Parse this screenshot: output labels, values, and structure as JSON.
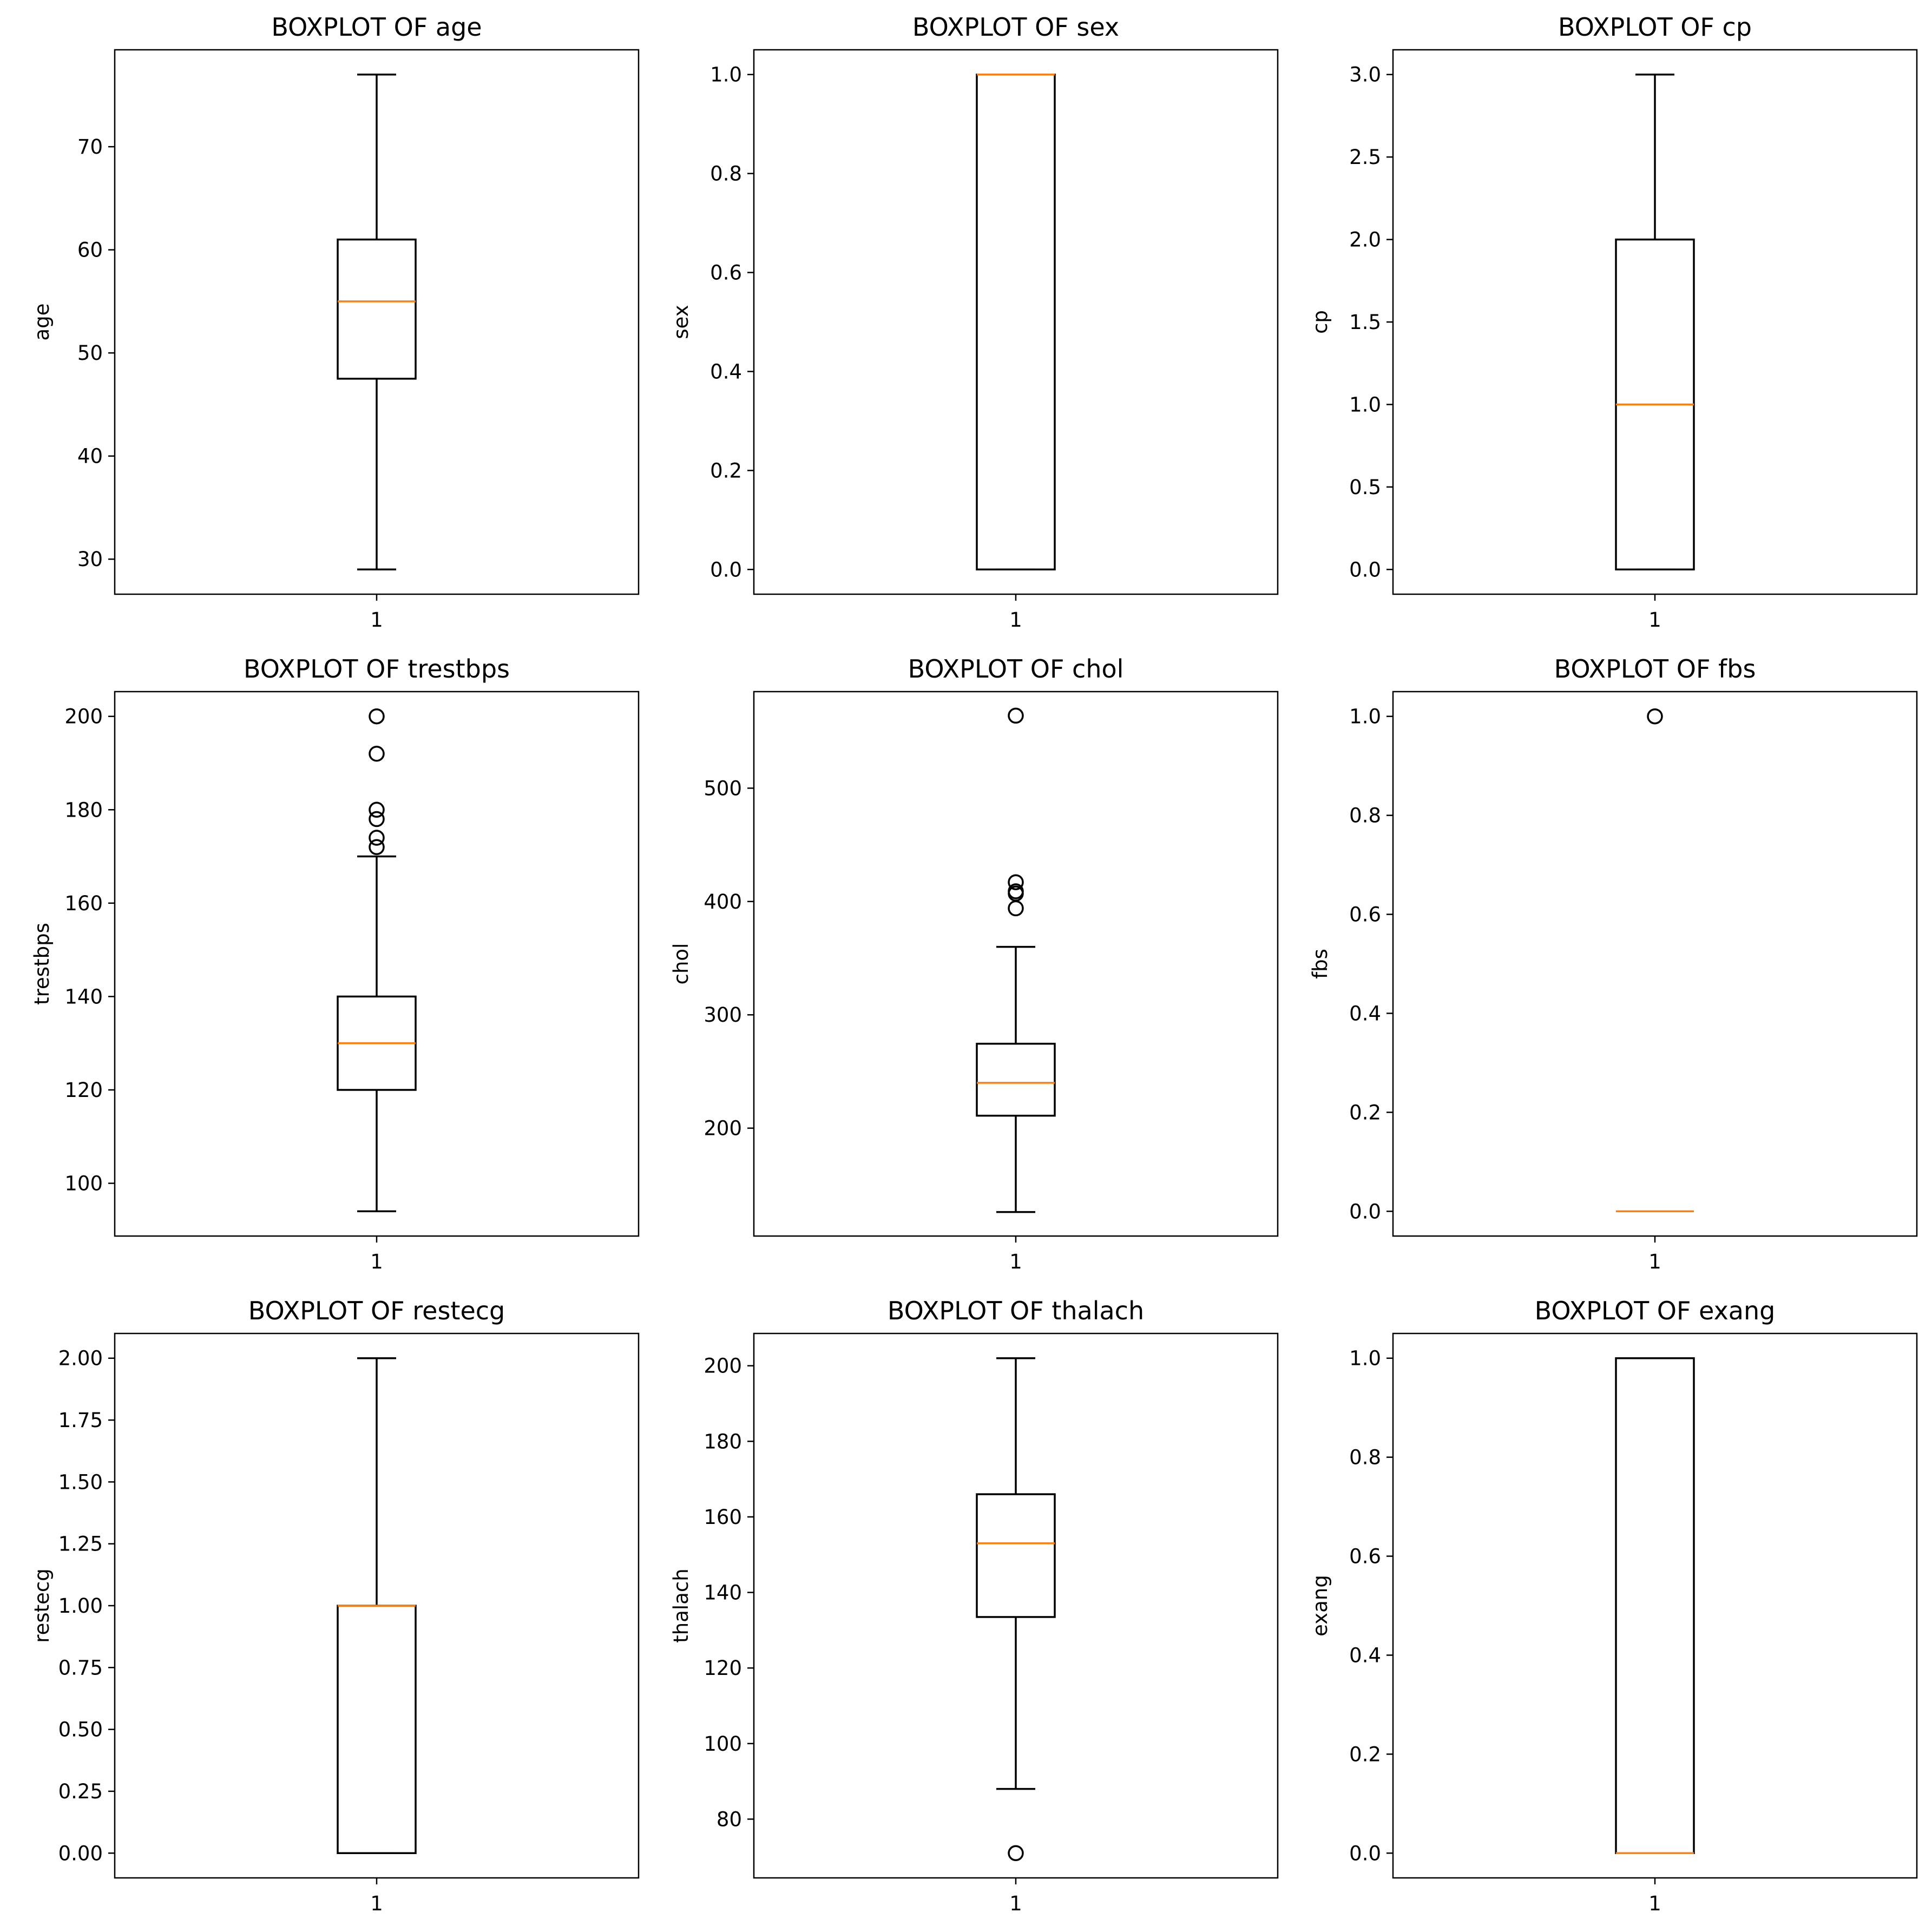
{
  "chart_data": [
    {
      "type": "box",
      "title": "BOXPLOT OF age",
      "ylabel": "age",
      "categories": [
        "1"
      ],
      "ylim": [
        26.6,
        79.4
      ],
      "yticks": [
        30,
        40,
        50,
        60,
        70
      ],
      "ytick_labels": [
        "30",
        "40",
        "50",
        "60",
        "70"
      ],
      "box": {
        "whisker_low": 29,
        "q1": 47.5,
        "median": 55,
        "q3": 61,
        "whisker_high": 77
      },
      "outliers": []
    },
    {
      "type": "box",
      "title": "BOXPLOT OF sex",
      "ylabel": "sex",
      "categories": [
        "1"
      ],
      "ylim": [
        -0.05,
        1.05
      ],
      "yticks": [
        0,
        0.2,
        0.4,
        0.6,
        0.8,
        1.0
      ],
      "ytick_labels": [
        "0.0",
        "0.2",
        "0.4",
        "0.6",
        "0.8",
        "1.0"
      ],
      "box": {
        "whisker_low": 0,
        "q1": 0,
        "median": 1,
        "q3": 1,
        "whisker_high": 1
      },
      "outliers": []
    },
    {
      "type": "box",
      "title": "BOXPLOT OF cp",
      "ylabel": "cp",
      "categories": [
        "1"
      ],
      "ylim": [
        -0.15,
        3.15
      ],
      "yticks": [
        0,
        0.5,
        1.0,
        1.5,
        2.0,
        2.5,
        3.0
      ],
      "ytick_labels": [
        "0.0",
        "0.5",
        "1.0",
        "1.5",
        "2.0",
        "2.5",
        "3.0"
      ],
      "box": {
        "whisker_low": 0,
        "q1": 0,
        "median": 1,
        "q3": 2,
        "whisker_high": 3
      },
      "outliers": []
    },
    {
      "type": "box",
      "title": "BOXPLOT OF trestbps",
      "ylabel": "trestbps",
      "categories": [
        "1"
      ],
      "ylim": [
        88.7,
        205.3
      ],
      "yticks": [
        100,
        120,
        140,
        160,
        180,
        200
      ],
      "ytick_labels": [
        "100",
        "120",
        "140",
        "160",
        "180",
        "200"
      ],
      "box": {
        "whisker_low": 94,
        "q1": 120,
        "median": 130,
        "q3": 140,
        "whisker_high": 170
      },
      "outliers": [
        172,
        174,
        178,
        180,
        192,
        200
      ]
    },
    {
      "type": "box",
      "title": "BOXPLOT OF chol",
      "ylabel": "chol",
      "categories": [
        "1"
      ],
      "ylim": [
        104.8,
        585.2
      ],
      "yticks": [
        200,
        300,
        400,
        500
      ],
      "ytick_labels": [
        "200",
        "300",
        "400",
        "500"
      ],
      "box": {
        "whisker_low": 126,
        "q1": 211,
        "median": 240,
        "q3": 274.5,
        "whisker_high": 360
      },
      "outliers": [
        394,
        407,
        409,
        417,
        564
      ]
    },
    {
      "type": "box",
      "title": "BOXPLOT OF fbs",
      "ylabel": "fbs",
      "categories": [
        "1"
      ],
      "ylim": [
        -0.05,
        1.05
      ],
      "yticks": [
        0,
        0.2,
        0.4,
        0.6,
        0.8,
        1.0
      ],
      "ytick_labels": [
        "0.0",
        "0.2",
        "0.4",
        "0.6",
        "0.8",
        "1.0"
      ],
      "box": {
        "whisker_low": 0,
        "q1": 0,
        "median": 0,
        "q3": 0,
        "whisker_high": 0
      },
      "outliers": [
        1
      ]
    },
    {
      "type": "box",
      "title": "BOXPLOT OF restecg",
      "ylabel": "restecg",
      "categories": [
        "1"
      ],
      "ylim": [
        -0.1,
        2.1
      ],
      "yticks": [
        0,
        0.25,
        0.5,
        0.75,
        1.0,
        1.25,
        1.5,
        1.75,
        2.0
      ],
      "ytick_labels": [
        "0.00",
        "0.25",
        "0.50",
        "0.75",
        "1.00",
        "1.25",
        "1.50",
        "1.75",
        "2.00"
      ],
      "box": {
        "whisker_low": 0,
        "q1": 0,
        "median": 1,
        "q3": 1,
        "whisker_high": 2
      },
      "outliers": []
    },
    {
      "type": "box",
      "title": "BOXPLOT OF thalach",
      "ylabel": "thalach",
      "categories": [
        "1"
      ],
      "ylim": [
        64.45,
        208.55
      ],
      "yticks": [
        80,
        100,
        120,
        140,
        160,
        180,
        200
      ],
      "ytick_labels": [
        "80",
        "100",
        "120",
        "140",
        "160",
        "180",
        "200"
      ],
      "box": {
        "whisker_low": 88,
        "q1": 133.5,
        "median": 153,
        "q3": 166,
        "whisker_high": 202
      },
      "outliers": [
        71
      ]
    },
    {
      "type": "box",
      "title": "BOXPLOT OF exang",
      "ylabel": "exang",
      "categories": [
        "1"
      ],
      "ylim": [
        -0.05,
        1.05
      ],
      "yticks": [
        0,
        0.2,
        0.4,
        0.6,
        0.8,
        1.0
      ],
      "ytick_labels": [
        "0.0",
        "0.2",
        "0.4",
        "0.6",
        "0.8",
        "1.0"
      ],
      "box": {
        "whisker_low": 0,
        "q1": 0,
        "median": 0,
        "q3": 1,
        "whisker_high": 1
      },
      "outliers": []
    }
  ],
  "colors": {
    "median": "#ff7f0e",
    "box": "#000000",
    "axes": "#000000",
    "background": "#ffffff"
  }
}
